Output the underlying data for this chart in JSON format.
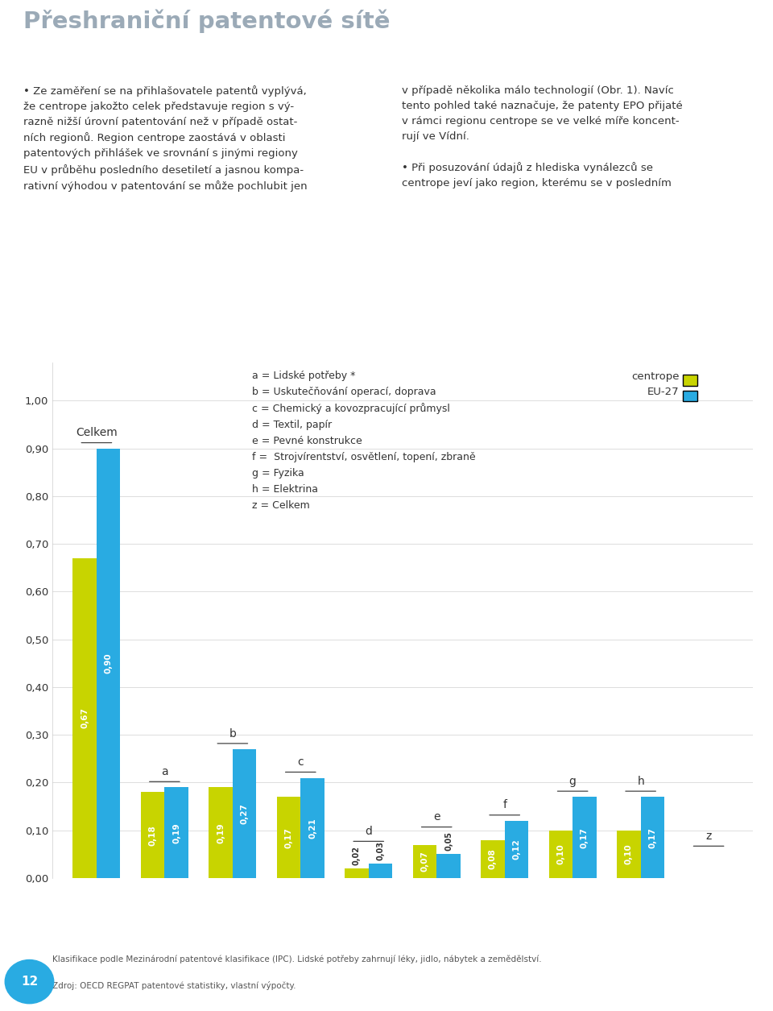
{
  "title_main": "Přeshraniční patentové sítě",
  "header_bg_color": "#29ABE2",
  "cat_labels": [
    "Celkem",
    "a",
    "b",
    "c",
    "d",
    "e",
    "f",
    "g",
    "h",
    "z"
  ],
  "centrope_values": [
    0.67,
    0.18,
    0.19,
    0.17,
    0.02,
    0.07,
    0.08,
    0.1,
    0.1,
    0.0
  ],
  "eu27_values": [
    0.9,
    0.19,
    0.27,
    0.21,
    0.03,
    0.05,
    0.12,
    0.17,
    0.17,
    0.0
  ],
  "centrope_color": "#C8D400",
  "eu27_color": "#29ABE2",
  "ylim": [
    0.0,
    1.08
  ],
  "yticks": [
    0.0,
    0.1,
    0.2,
    0.3,
    0.4,
    0.5,
    0.6,
    0.7,
    0.8,
    0.9,
    1.0
  ],
  "ytick_labels": [
    "0,00",
    "0,10",
    "0,20",
    "0,30",
    "0,40",
    "0,50",
    "0,60",
    "0,70",
    "0,80",
    "0,90",
    "1,00"
  ],
  "legend_centrope": "centrope",
  "legend_eu27": "EU-27",
  "legend_lines": [
    "a = Lidské potřeby *",
    "b = Uskutečňování operací, doprava",
    "c = Chemický a kovozpracující průmysl",
    "d = Textil, papír",
    "e = Pevné konstrukce",
    "f =  Strojvírentství, osvětlení, topení, zbraně",
    "g = Fyzika",
    "h = Elektrina",
    "z = Celkem"
  ],
  "footnote1": "Klasifikace podle Mezinárodní patentové klasifikace (IPC). Lidské potřeby zahrnují léky, jidlo, nábytek a zemědělství.",
  "footnote2": "Zdroj: OECD REGPAT patentové statistiky, vlastní výpočty.",
  "page_number": "12",
  "bar_width": 0.35,
  "left_col": "• Ze zaměření se na přihlašovatele patentů vyplývá,\nže centrope jakožto celek představuje region s vý-\nrazně nižší úrovní patentování než v případě ostat-\nních regionů. Region centrope zaostává v oblasti\npatentových přihlášek ve srovnání s jinými regiony\nEU v průběhu posledního desetiletí a jasnou kompa-\nrativní výhodou v patentování se může pochlubit jen",
  "right_col": "v případě několika málo technologií (Obr. 1). Navíc\ntento pohled také naznačuje, že patenty EPO přijaté\nv rámci regionu centrope se ve velké míře koncent-\nrují ve Vídní.\n\n• Při posuzování údajů z hlediska vynálezců se\ncentrope jeví jako region, kterému se v posledním"
}
